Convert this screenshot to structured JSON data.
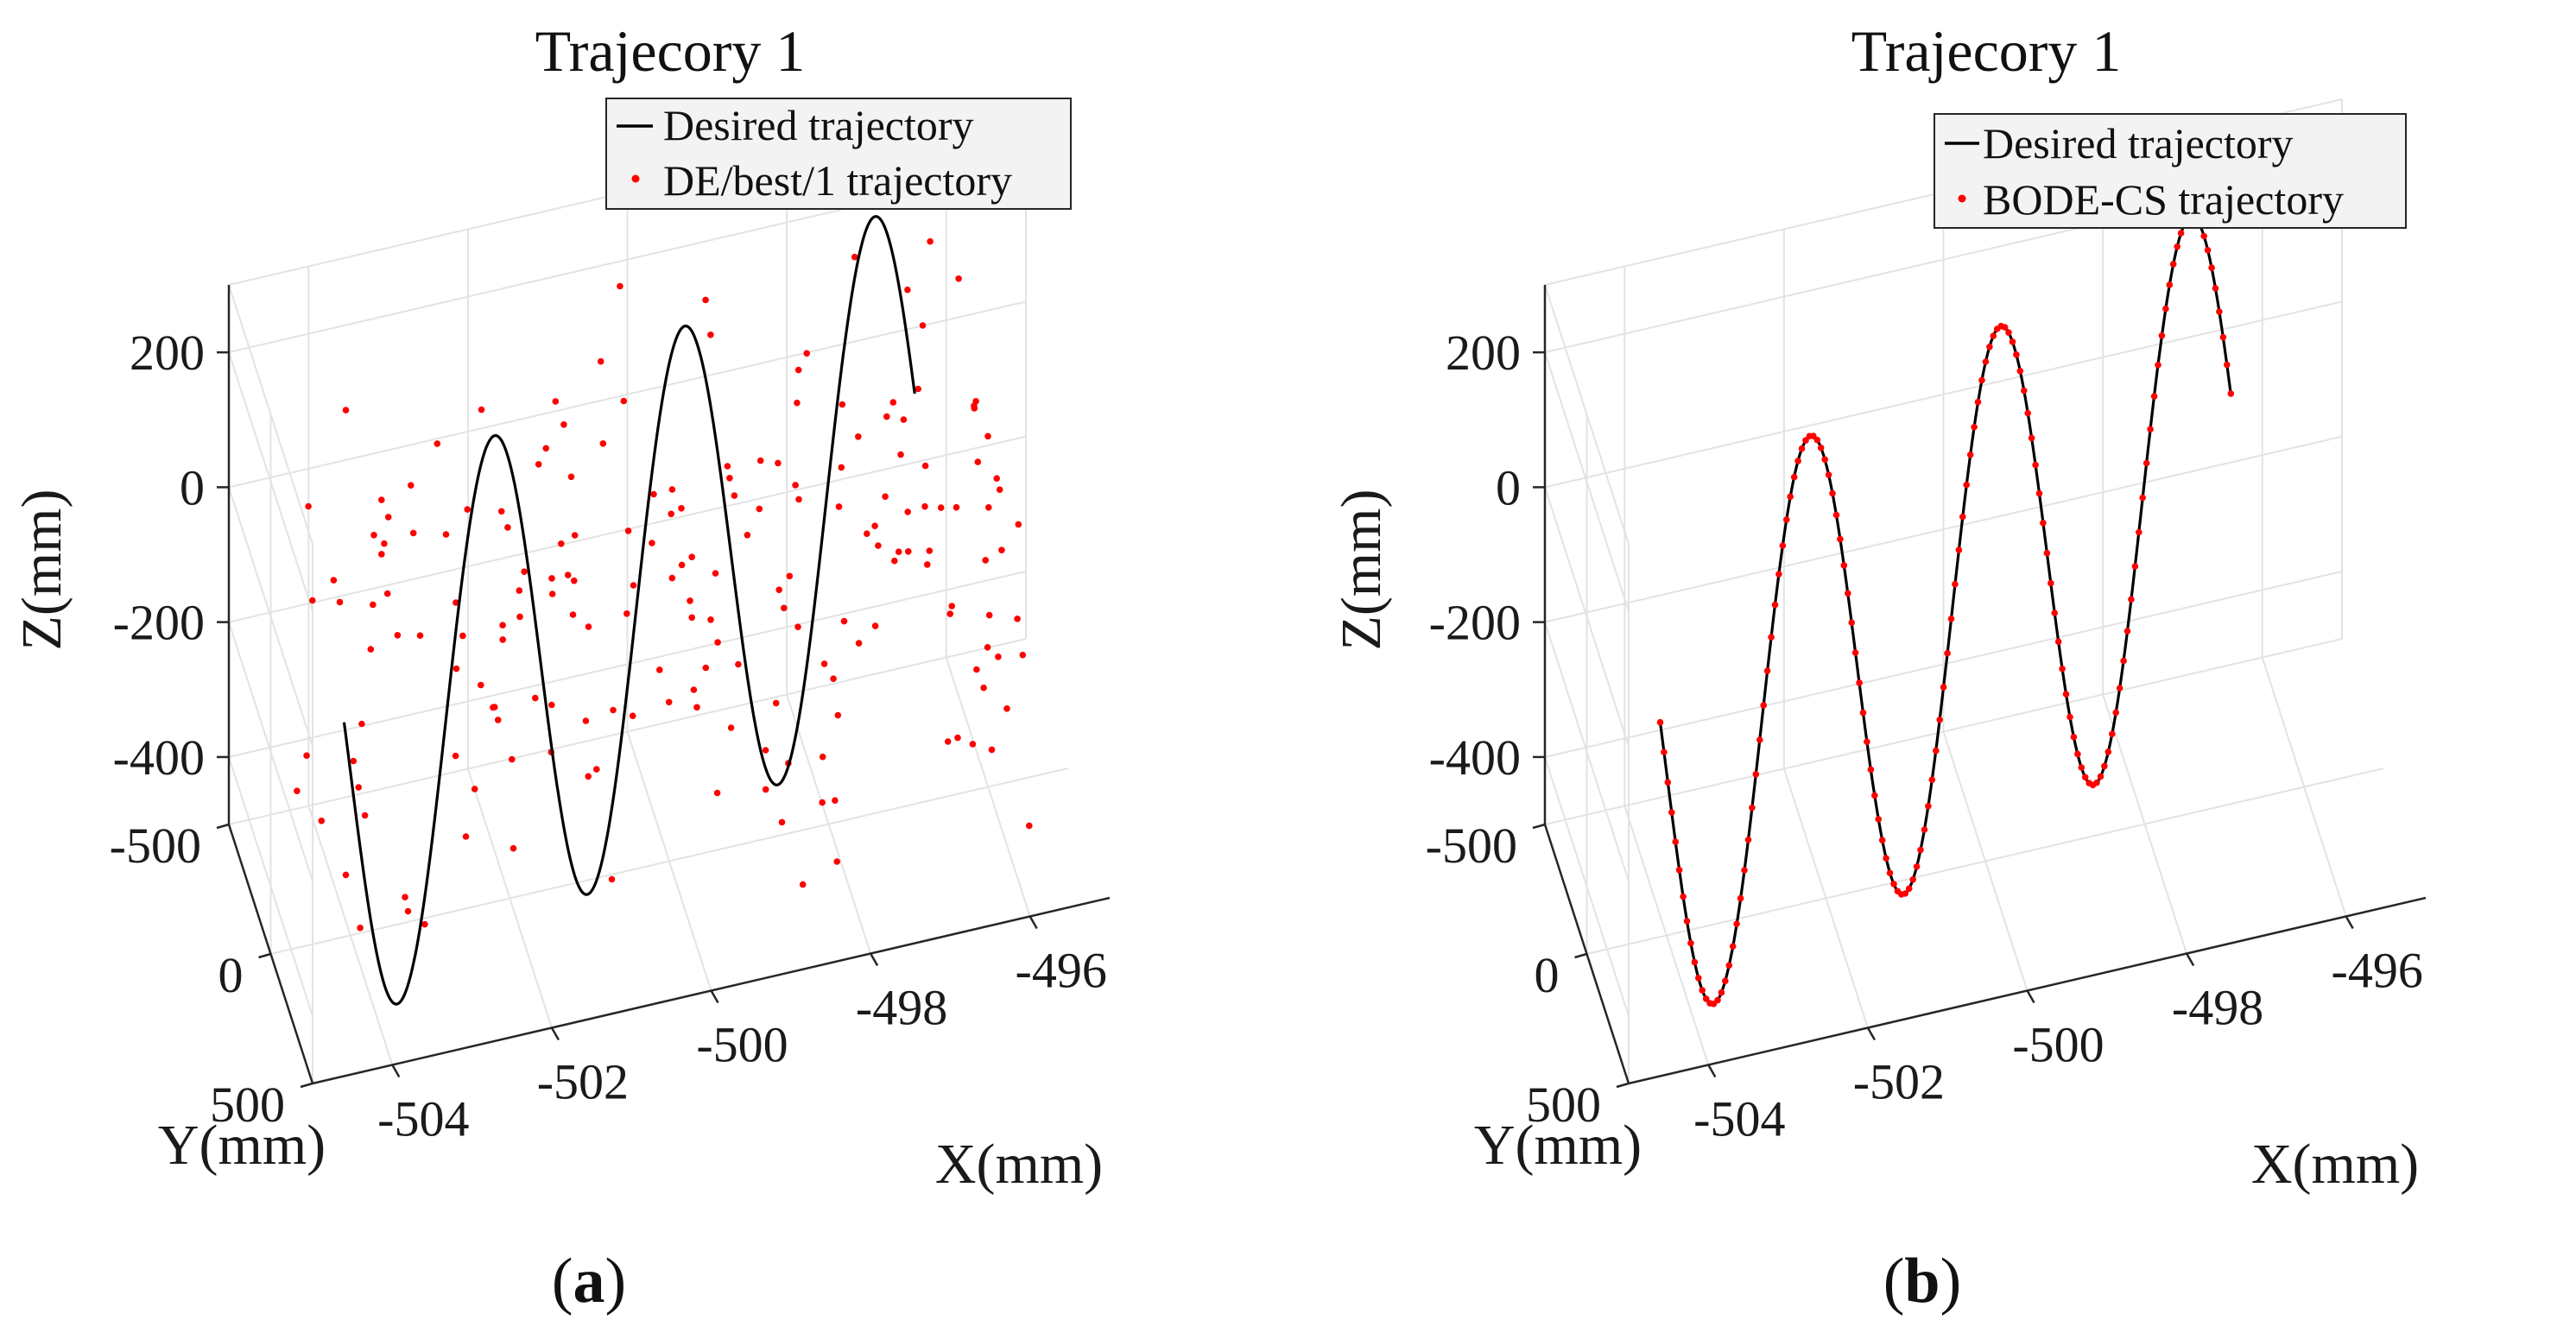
{
  "chart_data": [
    {
      "type": "scatter3d",
      "panel_label": "a",
      "title": "Trajecory 1",
      "xlabel": "X(mm)",
      "ylabel": "Y(mm)",
      "zlabel": "Z(mm)",
      "xlim": [
        -505,
        -495
      ],
      "ylim": [
        -500,
        500
      ],
      "zlim": [
        -500,
        300
      ],
      "xticks": [
        -504,
        -502,
        -500,
        -498,
        -496
      ],
      "yticks": [
        -500,
        0,
        500
      ],
      "zticks": [
        -400,
        -200,
        0,
        200
      ],
      "series": [
        {
          "name": "Desired trajectory",
          "style": "line",
          "color": "#000000",
          "cycles": 3,
          "z_amplitude": 380,
          "z_center": -140,
          "x_start": -504.5,
          "x_end": -496.5,
          "y_start": 400,
          "y_end": -400
        },
        {
          "name": "DE/best/1 trajectory",
          "style": "points",
          "color": "#ff0000",
          "point_count": 190,
          "scatter": "random"
        }
      ]
    },
    {
      "type": "scatter3d",
      "panel_label": "b",
      "title": "Trajecory 1",
      "xlabel": "X(mm)",
      "ylabel": "Y(mm)",
      "zlabel": "Z(mm)",
      "xlim": [
        -505,
        -495
      ],
      "ylim": [
        -500,
        500
      ],
      "zlim": [
        -500,
        300
      ],
      "xticks": [
        -504,
        -502,
        -500,
        -498,
        -496
      ],
      "yticks": [
        -500,
        0,
        500
      ],
      "zticks": [
        -400,
        -200,
        0,
        200
      ],
      "series": [
        {
          "name": "Desired trajectory",
          "style": "line",
          "color": "#000000",
          "cycles": 3,
          "z_amplitude": 380,
          "z_center": -140,
          "x_start": -504.5,
          "x_end": -496.5,
          "y_start": 400,
          "y_end": -400
        },
        {
          "name": "BODE-CS trajectory",
          "style": "points",
          "color": "#ff0000",
          "point_count": 150,
          "scatter": "on-path"
        }
      ]
    }
  ]
}
